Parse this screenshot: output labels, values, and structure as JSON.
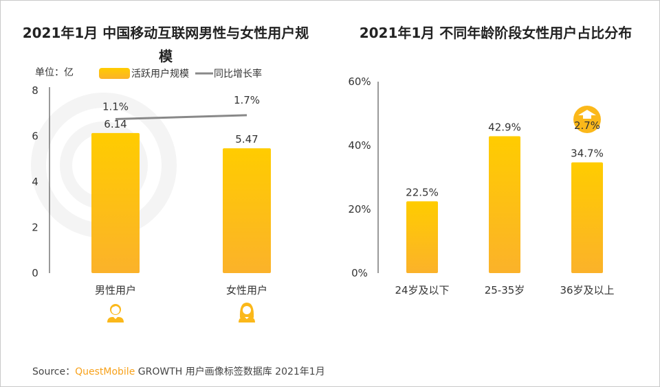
{
  "chart_data": [
    {
      "type": "bar",
      "title": "2021年1月 中国移动互联网男性与女性用户规模",
      "unit_label": "单位：亿",
      "categories": [
        "男性用户",
        "女性用户"
      ],
      "series": [
        {
          "name": "活跃用户规模",
          "values": [
            6.14,
            5.47
          ],
          "labels": [
            "6.14",
            "5.47"
          ],
          "color": "#ffc400"
        },
        {
          "name": "同比增长率",
          "type": "line",
          "values": [
            1.1,
            1.7
          ],
          "labels": [
            "1.1%",
            "1.7%"
          ],
          "color": "#888888"
        }
      ],
      "yticks": [
        "0",
        "2",
        "4",
        "6",
        "8"
      ],
      "ylim": [
        0,
        8
      ],
      "grid": false,
      "legend": "top",
      "icons": [
        "male-user-icon",
        "female-user-icon"
      ]
    },
    {
      "type": "bar",
      "title": "2021年1月 不同年龄阶段女性用户占比分布",
      "categories": [
        "24岁及以下",
        "25-35岁",
        "36岁及以上"
      ],
      "values": [
        22.5,
        42.9,
        34.7
      ],
      "labels": [
        "22.5%",
        "42.9%",
        "34.7%"
      ],
      "yticks": [
        "0%",
        "20%",
        "40%",
        "60%"
      ],
      "ylim": [
        0,
        60
      ],
      "grid": false,
      "annotation": {
        "text": "2.7%",
        "icon": "up-arrow-icon",
        "category": "36岁及以上"
      },
      "color": "#ffc400"
    }
  ],
  "watermark": "QUEST MOBILE",
  "source": {
    "prefix": "Source：",
    "brand": "QuestMobile",
    "text": "GROWTH 用户画像标签数据库 2021年1月"
  }
}
